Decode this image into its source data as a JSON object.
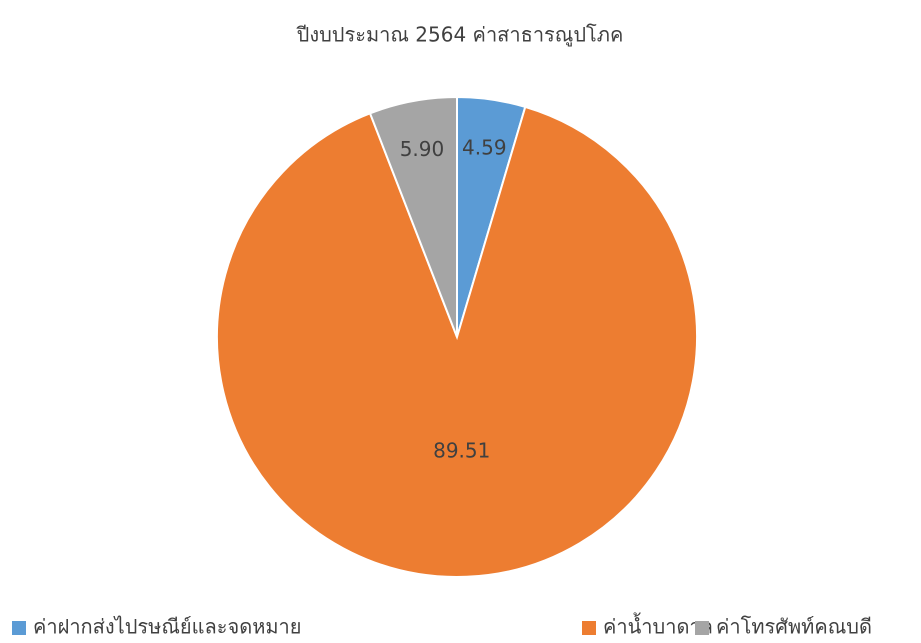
{
  "chart_data": {
    "type": "pie",
    "title": "ปีงบประมาณ 2564 ค่าสาธารณูปโภค",
    "categories": [
      "ค่าฝากส่งไปรษณีย์และจดหมาย",
      "ค่าน้ำบาดาล",
      "ค่าโทรศัพท์คณบดี"
    ],
    "values": [
      4.59,
      89.51,
      5.9
    ],
    "value_labels": [
      "4.59",
      "89.51",
      "5.90"
    ],
    "colors": [
      "#5b9bd5",
      "#ed7d31",
      "#a5a5a5"
    ],
    "legend": "bottom"
  }
}
